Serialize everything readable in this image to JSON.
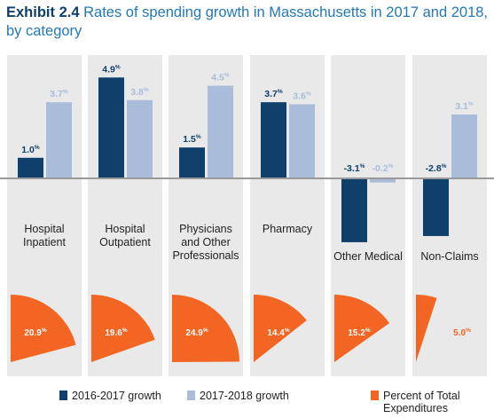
{
  "title": {
    "prefix": "Exhibit 2.4",
    "text": "Rates of spending growth in Massachusetts in 2017 and 2018, by category"
  },
  "colors": {
    "series1": "#0f3f6b",
    "series2": "#a9bcd9",
    "pie": "#f26522",
    "panel": "#e9e9e9",
    "axis": "#999999"
  },
  "chart_data": {
    "type": "bar",
    "title": "Rates of spending growth in Massachusetts in 2017 and 2018, by category",
    "categories": [
      [
        "Hospital",
        "Inpatient"
      ],
      [
        "Hospital",
        "Outpatient"
      ],
      [
        "Physicians",
        "and Other",
        "Professionals"
      ],
      [
        "Pharmacy"
      ],
      [
        "Other Medical"
      ],
      [
        "Non-Claims"
      ]
    ],
    "series": [
      {
        "name": "2016-2017 growth",
        "values": [
          1.0,
          4.9,
          1.5,
          3.7,
          -3.1,
          -2.8
        ]
      },
      {
        "name": "2017-2018 growth",
        "values": [
          3.7,
          3.8,
          4.5,
          3.6,
          -0.2,
          3.1
        ]
      }
    ],
    "value_labels": {
      "s1": [
        "1.0",
        "4.9",
        "1.5",
        "3.7",
        "-3.1",
        "-2.8"
      ],
      "s2": [
        "3.7",
        "3.8",
        "4.5",
        "3.6",
        "-0.2",
        "3.1"
      ]
    },
    "unit": "%",
    "ylim": [
      -3.8,
      5.3
    ],
    "percent_of_total_expenditures": {
      "name": "Percent of Total Expenditures",
      "values": [
        20.9,
        19.6,
        24.9,
        14.4,
        15.2,
        5.0
      ],
      "labels": [
        "20.9",
        "19.6",
        "24.9",
        "14.4",
        "15.2",
        "5.0"
      ]
    },
    "legend": [
      "2016-2017 growth",
      "2017-2018 growth",
      [
        "Percent of Total",
        "Expenditures"
      ]
    ],
    "legend_position": "bottom"
  }
}
